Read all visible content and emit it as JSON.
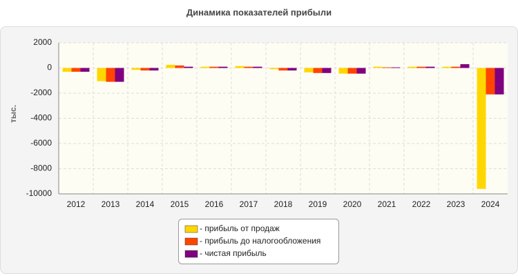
{
  "chart_data": {
    "type": "bar",
    "title": "Динамика показателей прибыли",
    "y_label": "тыс.",
    "categories": [
      "2012",
      "2013",
      "2014",
      "2015",
      "2016",
      "2017",
      "2018",
      "2019",
      "2020",
      "2021",
      "2022",
      "2023",
      "2024"
    ],
    "series": [
      {
        "name": "- прибыль от продаж",
        "color": "#ffd700",
        "values": [
          -300,
          -1050,
          -150,
          250,
          100,
          150,
          -100,
          -350,
          -450,
          100,
          100,
          100,
          -9600
        ]
      },
      {
        "name": "- прибыль до налогообложения",
        "color": "#ff4500",
        "values": [
          -300,
          -1100,
          -200,
          200,
          100,
          100,
          -200,
          -400,
          -450,
          50,
          100,
          100,
          -2100
        ]
      },
      {
        "name": "- чистая прибыль",
        "color": "#800080",
        "values": [
          -300,
          -1100,
          -200,
          100,
          100,
          100,
          -200,
          -400,
          -450,
          50,
          100,
          300,
          -2100
        ]
      }
    ],
    "ylim": [
      -10000,
      2000
    ],
    "yticks": [
      -10000,
      -8000,
      -6000,
      -4000,
      -2000,
      0,
      2000
    ],
    "grid": true
  }
}
